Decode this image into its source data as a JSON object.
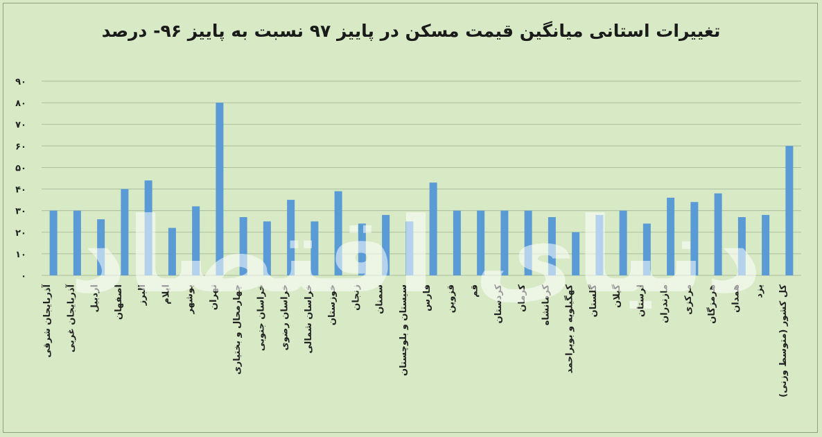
{
  "title": "تغییرات استانی میانگین قیمت مسکن در پاییز ۹۷ نسبت به پاییز ۹۶- درصد",
  "watermark": "دنیای اقتصاد",
  "colors": {
    "bar": "#5b9bd5",
    "grid": "#a9bfa0",
    "background": "#d7e9c5"
  },
  "chart_data": {
    "type": "bar",
    "title": "تغییرات استانی میانگین قیمت مسکن در پاییز ۹۷ نسبت به پاییز ۹۶- درصد",
    "xlabel": "",
    "ylabel": "",
    "ylim": [
      0,
      90
    ],
    "yticks": [
      0,
      10,
      20,
      30,
      40,
      50,
      60,
      70,
      80,
      90
    ],
    "ytick_labels": [
      "۰",
      "۱۰",
      "۲۰",
      "۳۰",
      "۴۰",
      "۵۰",
      "۶۰",
      "۷۰",
      "۸۰",
      "۹۰"
    ],
    "grid": true,
    "categories": [
      "آذربایجان شرقی",
      "آذربایجان غربی",
      "اردبیل",
      "اصفهان",
      "البرز",
      "ایلام",
      "بوشهر",
      "تهران",
      "چهارمحال و بختیاری",
      "خراسان جنوبی",
      "خراسان رضوی",
      "خراسان شمالی",
      "خوزستان",
      "زنجان",
      "سمنان",
      "سیستان و بلوچستان",
      "فارس",
      "قزوین",
      "قم",
      "کردستان",
      "کرمان",
      "کرمانشاه",
      "کهگیلویه و بویراحمد",
      "گلستان",
      "گیلان",
      "لرستان",
      "مازندران",
      "مرکزی",
      "هرمزگان",
      "همدان",
      "یزد",
      "کل کشور (متوسط وزنی)"
    ],
    "values": [
      30,
      30,
      26,
      40,
      44,
      22,
      32,
      80,
      27,
      25,
      35,
      25,
      39,
      24,
      28,
      25,
      43,
      30,
      30,
      30,
      30,
      27,
      20,
      28,
      30,
      24,
      36,
      34,
      38,
      27,
      28,
      60
    ]
  }
}
